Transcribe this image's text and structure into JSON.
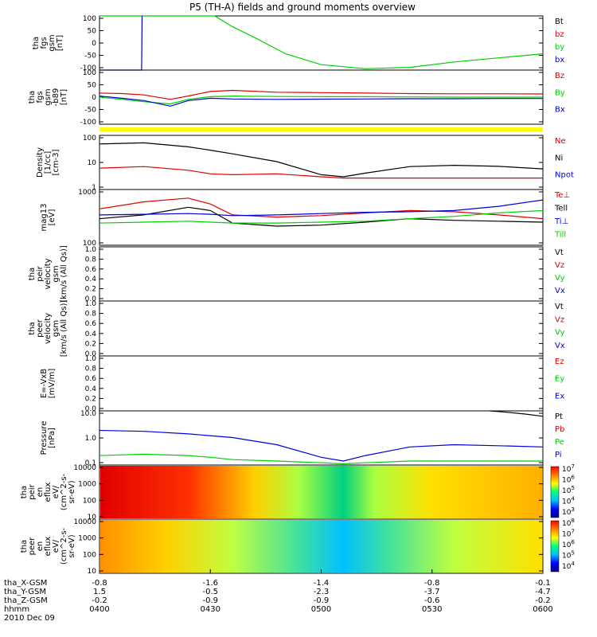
{
  "title": "P5 (TH-A) fields and ground moments overview",
  "colors": {
    "black": "#000000",
    "red": "#e00000",
    "green": "#00d000",
    "blue": "#0000dd",
    "yellow": "#ffff00"
  },
  "chart_data": {
    "type": "line",
    "x_labels": [
      "0400",
      "0430",
      "0500",
      "0530",
      "0600"
    ],
    "date": "2010 Dec 09",
    "orbit_rows": [
      {
        "label": "tha_X-GSM",
        "values": [
          "-0.8",
          "-1.6",
          "-1.4",
          "-0.8",
          "-0.1"
        ]
      },
      {
        "label": "tha_Y-GSM",
        "values": [
          "1.5",
          "-0.5",
          "-2.3",
          "-3.7",
          "-4.7"
        ]
      },
      {
        "label": "tha_Z-GSM",
        "values": [
          "-0.2",
          "-0.9",
          "-0.9",
          "-0.6",
          "-0.2"
        ]
      },
      {
        "label": "hhmm",
        "values": []
      }
    ],
    "panels": [
      {
        "id": "fgs",
        "ylabel": [
          "tha",
          "fgs",
          "gsm",
          "[nT]"
        ],
        "ylim": [
          -100,
          100
        ],
        "ticks": [
          "100",
          "50",
          "0",
          "-50",
          "-100"
        ],
        "legend": [
          {
            "text": "Bt",
            "color": "black"
          },
          {
            "text": "bz",
            "color": "red"
          },
          {
            "text": "by",
            "color": "green"
          },
          {
            "text": "bx",
            "color": "blue"
          }
        ],
        "series": [
          {
            "name": "by",
            "color": "green",
            "x": [
              0,
              0.18,
              0.22,
              0.26,
              0.3,
              0.35,
              0.42,
              0.5,
              0.6,
              0.7,
              0.8,
              0.9,
              1
            ],
            "y": [
              100,
              100,
              100,
              100,
              60,
              20,
              -40,
              -80,
              -95,
              -90,
              -70,
              -55,
              -40
            ]
          },
          {
            "name": "bx",
            "color": "blue",
            "x": [
              0.0,
              0.095,
              0.096
            ],
            "y": [
              -100,
              -100,
              100
            ]
          }
        ]
      },
      {
        "id": "fgs2",
        "ylabel": [
          "tha",
          "fgs",
          "gsm",
          "-b89",
          "[nT]"
        ],
        "ylim": [
          -120,
          120
        ],
        "ticks": [
          "100",
          "50",
          "0",
          "-50",
          "-100"
        ],
        "legend": [
          {
            "text": "Bz",
            "color": "red"
          },
          {
            "text": "By",
            "color": "green"
          },
          {
            "text": "Bx",
            "color": "blue"
          }
        ],
        "series": [
          {
            "name": "Bz",
            "color": "red",
            "x": [
              0,
              0.05,
              0.1,
              0.16,
              0.2,
              0.25,
              0.3,
              0.4,
              0.5,
              0.6,
              0.7,
              0.8,
              0.9,
              1
            ],
            "y": [
              18,
              16,
              10,
              -10,
              5,
              25,
              30,
              22,
              20,
              18,
              16,
              15,
              15,
              14
            ]
          },
          {
            "name": "By",
            "color": "green",
            "x": [
              0,
              0.05,
              0.1,
              0.16,
              0.2,
              0.25,
              0.3,
              0.4,
              0.5,
              0.6,
              0.7,
              0.8,
              0.9,
              1
            ],
            "y": [
              0,
              -10,
              -20,
              -30,
              -10,
              2,
              5,
              3,
              2,
              2,
              1,
              0,
              0,
              0
            ]
          },
          {
            "name": "Bx",
            "color": "blue",
            "x": [
              0,
              0.05,
              0.1,
              0.16,
              0.2,
              0.25,
              0.3,
              0.4,
              0.5,
              0.6,
              0.7,
              0.8,
              0.9,
              1
            ],
            "y": [
              5,
              -5,
              -15,
              -40,
              -15,
              -5,
              -8,
              -10,
              -9,
              -8,
              -7,
              -7,
              -6,
              -6
            ]
          }
        ]
      },
      {
        "id": "density",
        "ylabel": [
          "Density",
          "[1/cc]",
          "[cm-3]"
        ],
        "log": true,
        "ylim": [
          0.1,
          200
        ],
        "ticks": [
          "100",
          "10",
          "1"
        ],
        "legend": [
          {
            "text": "Ne",
            "color": "red"
          },
          {
            "text": "Ni",
            "color": "black"
          },
          {
            "text": "Npot",
            "color": "blue"
          }
        ],
        "series": [
          {
            "name": "Ni",
            "color": "black",
            "x": [
              0,
              0.1,
              0.2,
              0.25,
              0.3,
              0.4,
              0.5,
              0.55,
              0.6,
              0.7,
              0.8,
              0.9,
              1
            ],
            "y": [
              60,
              70,
              40,
              25,
              15,
              5,
              0.8,
              0.6,
              1,
              2.5,
              3,
              2.6,
              1.8
            ]
          },
          {
            "name": "Ne",
            "color": "red",
            "x": [
              0,
              0.1,
              0.2,
              0.25,
              0.3,
              0.4,
              0.5,
              0.55,
              0.6,
              0.7,
              0.8,
              0.9,
              1
            ],
            "y": [
              2,
              2.5,
              1.5,
              0.9,
              0.8,
              0.9,
              0.6,
              0.5,
              0.5,
              0.5,
              0.5,
              0.5,
              0.5
            ]
          }
        ]
      },
      {
        "id": "temp",
        "ylabel": [
          "mag13",
          "[eV]"
        ],
        "log": true,
        "ylim": [
          100,
          1000
        ],
        "ticks": [
          "1000",
          "100"
        ],
        "legend": [
          {
            "text": "Te⊥",
            "color": "red"
          },
          {
            "text": "Tell",
            "color": "black"
          },
          {
            "text": "Ti⊥",
            "color": "blue"
          },
          {
            "text": "Till",
            "color": "green"
          }
        ],
        "series": [
          {
            "name": "Te",
            "color": "red",
            "x": [
              0,
              0.1,
              0.2,
              0.25,
              0.3,
              0.4,
              0.5,
              0.6,
              0.7,
              0.8,
              0.9,
              1
            ],
            "y": [
              450,
              600,
              700,
              550,
              350,
              320,
              340,
              380,
              420,
              400,
              350,
              300
            ]
          },
          {
            "name": "Tell",
            "color": "black",
            "x": [
              0,
              0.1,
              0.2,
              0.25,
              0.3,
              0.4,
              0.5,
              0.6,
              0.7,
              0.8,
              0.9,
              1
            ],
            "y": [
              300,
              350,
              480,
              420,
              250,
              220,
              230,
              260,
              300,
              280,
              270,
              260
            ]
          },
          {
            "name": "Ti",
            "color": "blue",
            "x": [
              0,
              0.1,
              0.2,
              0.25,
              0.3,
              0.4,
              0.5,
              0.6,
              0.7,
              0.8,
              0.9,
              1
            ],
            "y": [
              350,
              360,
              370,
              360,
              340,
              350,
              370,
              390,
              400,
              420,
              500,
              650
            ]
          },
          {
            "name": "Till",
            "color": "green",
            "x": [
              0,
              0.1,
              0.2,
              0.25,
              0.3,
              0.4,
              0.5,
              0.6,
              0.7,
              0.8,
              0.9,
              1
            ],
            "y": [
              250,
              260,
              270,
              260,
              250,
              250,
              260,
              270,
              300,
              330,
              380,
              420
            ]
          }
        ]
      },
      {
        "id": "vel1",
        "ylabel": [
          "tha",
          "peir",
          "velocity",
          "gsm",
          "[km/s (All Qs)]"
        ],
        "ylim": [
          0,
          1
        ],
        "ticks": [
          "1.0",
          "0.8",
          "0.6",
          "0.4",
          "0.2",
          "0.0"
        ],
        "legend": [
          {
            "text": "Vt",
            "color": "black"
          },
          {
            "text": "Vz",
            "color": "red"
          },
          {
            "text": "Vy",
            "color": "green"
          },
          {
            "text": "Vx",
            "color": "blue"
          }
        ],
        "series": []
      },
      {
        "id": "vel2",
        "ylabel": [
          "tha",
          "peer",
          "velocity",
          "gsm",
          "[km/s (All Qs)]"
        ],
        "ylim": [
          0,
          1
        ],
        "ticks": [
          "1.0",
          "0.8",
          "0.6",
          "0.4",
          "0.2",
          "0.0"
        ],
        "legend": [
          {
            "text": "Vt",
            "color": "black"
          },
          {
            "text": "Vz",
            "color": "red"
          },
          {
            "text": "Vy",
            "color": "green"
          },
          {
            "text": "Vx",
            "color": "blue"
          }
        ],
        "series": []
      },
      {
        "id": "efield",
        "ylabel": [
          "E=-VxB",
          "[mV/m]"
        ],
        "ylim": [
          0,
          1
        ],
        "ticks": [
          "1.0",
          "0.8",
          "0.6",
          "0.4",
          "0.2",
          "0.0"
        ],
        "legend": [
          {
            "text": "Ez",
            "color": "red"
          },
          {
            "text": "Ey",
            "color": "green"
          },
          {
            "text": "Ex",
            "color": "blue"
          }
        ],
        "series": []
      },
      {
        "id": "pressure",
        "ylabel": [
          "Pressure",
          "[nPa]"
        ],
        "log": true,
        "ylim": [
          0.03,
          30
        ],
        "ticks": [
          "10.0",
          "1.0",
          "0.1"
        ],
        "legend": [
          {
            "text": "Pt",
            "color": "black"
          },
          {
            "text": "Pb",
            "color": "red"
          },
          {
            "text": "Pe",
            "color": "green"
          },
          {
            "text": "Pi",
            "color": "blue"
          }
        ],
        "series": [
          {
            "name": "Pi",
            "color": "blue",
            "x": [
              0,
              0.1,
              0.2,
              0.3,
              0.4,
              0.5,
              0.55,
              0.6,
              0.7,
              0.8,
              0.9,
              1
            ],
            "y": [
              2.5,
              2.2,
              1.6,
              1,
              0.4,
              0.08,
              0.05,
              0.1,
              0.3,
              0.4,
              0.35,
              0.3
            ]
          },
          {
            "name": "Pe",
            "color": "green",
            "x": [
              0,
              0.1,
              0.2,
              0.25,
              0.3,
              0.4,
              0.5,
              0.55,
              0.6,
              0.7,
              0.8,
              0.9,
              1
            ],
            "y": [
              0.1,
              0.12,
              0.1,
              0.08,
              0.06,
              0.05,
              0.04,
              0.035,
              0.04,
              0.05,
              0.05,
              0.05,
              0.05
            ]
          },
          {
            "name": "Pt",
            "color": "black",
            "x": [
              0.88,
              0.92,
              0.96,
              1
            ],
            "y": [
              30,
              25,
              20,
              15
            ]
          }
        ]
      },
      {
        "id": "spec1",
        "spectrogram": true,
        "ylabel": [
          "tha",
          "peir",
          "en",
          "eflux",
          "eV/",
          "(cm^2-s-",
          "sr-eV)"
        ],
        "ticks": [
          "10000",
          "1000",
          "100",
          "10"
        ],
        "cbar_ticks": [
          "10^7",
          "10^6",
          "10^5",
          "10^4",
          "10^3"
        ],
        "bands": [
          {
            "x": 0,
            "c": "#e00000"
          },
          {
            "x": 0.2,
            "c": "#ff3000"
          },
          {
            "x": 0.35,
            "c": "#ffd000"
          },
          {
            "x": 0.45,
            "c": "#aaff40"
          },
          {
            "x": 0.55,
            "c": "#00d080"
          },
          {
            "x": 0.62,
            "c": "#aaff40"
          },
          {
            "x": 0.75,
            "c": "#ffe000"
          },
          {
            "x": 1,
            "c": "#ffb000"
          }
        ]
      },
      {
        "id": "spec2",
        "spectrogram": true,
        "ylabel": [
          "tha",
          "peer",
          "en",
          "eflux",
          "eV/",
          "(cm^2-s-",
          "sr-eV)"
        ],
        "ticks": [
          "10000",
          "1000",
          "100",
          "10"
        ],
        "cbar_ticks": [
          "10^8",
          "10^7",
          "10^6",
          "10^5",
          "10^4"
        ],
        "bands": [
          {
            "x": 0,
            "c": "#ff9000"
          },
          {
            "x": 0.15,
            "c": "#ffd000"
          },
          {
            "x": 0.3,
            "c": "#bfff40"
          },
          {
            "x": 0.45,
            "c": "#40e0a0"
          },
          {
            "x": 0.55,
            "c": "#00c0ff"
          },
          {
            "x": 0.65,
            "c": "#40e0a0"
          },
          {
            "x": 0.8,
            "c": "#bfff40"
          },
          {
            "x": 1,
            "c": "#ffe000"
          }
        ]
      }
    ]
  }
}
